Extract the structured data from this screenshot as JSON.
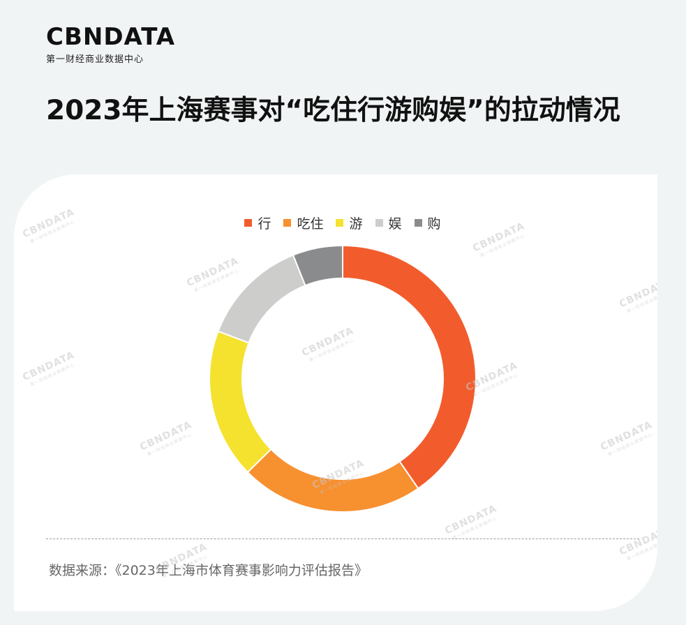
{
  "brand": {
    "name": "CBNDATA",
    "tagline": "第一财经商业数据中心"
  },
  "page_title": "2023年上海赛事对“吃住行游购娱”的拉动情况",
  "source_text": "数据来源：《2023年上海市体育赛事影响力评估报告》",
  "chart_data": {
    "type": "pie",
    "variant": "donut",
    "title": "",
    "legend_position": "top",
    "legend_order": [
      "行",
      "吃住",
      "游",
      "娱",
      "购"
    ],
    "slices": [
      {
        "label": "行",
        "value": 40,
        "color": "#f25c2d"
      },
      {
        "label": "吃住",
        "value": 22,
        "color": "#f7902f"
      },
      {
        "label": "游",
        "value": 18,
        "color": "#f4e22f"
      },
      {
        "label": "娱",
        "value": 13,
        "color": "#cdcecc"
      },
      {
        "label": "购",
        "value": 6,
        "color": "#8a8b8d"
      }
    ]
  }
}
